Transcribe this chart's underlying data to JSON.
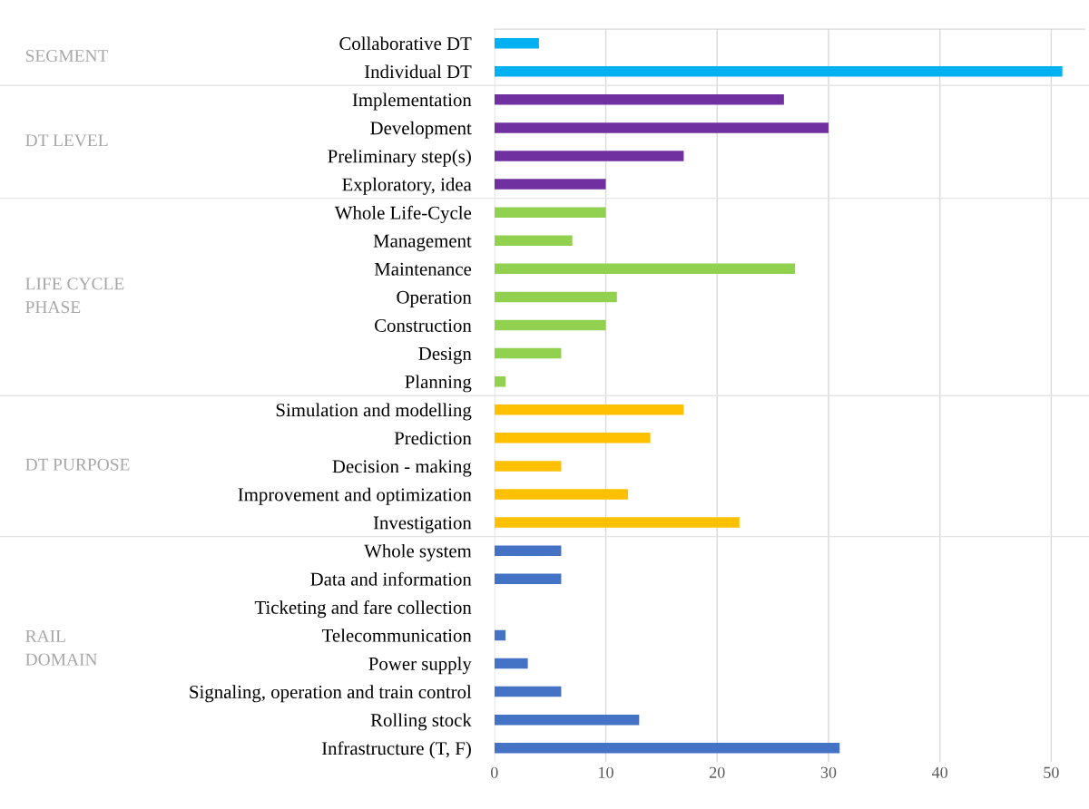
{
  "chart_data": {
    "type": "bar",
    "orientation": "horizontal",
    "categories": [
      "Collaborative DT",
      "Individual DT",
      "Implementation",
      "Development",
      "Preliminary step(s)",
      "Exploratory, idea",
      "Whole Life-Cycle",
      "Management",
      "Maintenance",
      "Operation",
      "Construction",
      "Design",
      "Planning",
      "Simulation and modelling",
      "Prediction",
      "Decision - making",
      "Improvement and optimization",
      "Investigation",
      "Whole system",
      "Data and information",
      "Ticketing and fare collection",
      "Telecommunication",
      "Power supply",
      "Signaling, operation and train control",
      "Rolling stock",
      "Infrastructure (T, F)"
    ],
    "series": [
      {
        "color": "#00b0f0",
        "values": [
          4,
          51,
          null,
          null,
          null,
          null,
          null,
          null,
          null,
          null,
          null,
          null,
          null,
          null,
          null,
          null,
          null,
          null,
          null,
          null,
          null,
          null,
          null,
          null,
          null,
          null
        ]
      },
      {
        "color": "#7030a0",
        "values": [
          null,
          null,
          26,
          30,
          17,
          10,
          null,
          null,
          null,
          null,
          null,
          null,
          null,
          null,
          null,
          null,
          null,
          null,
          null,
          null,
          null,
          null,
          null,
          null,
          null,
          null
        ]
      },
      {
        "color": "#92d050",
        "values": [
          null,
          null,
          null,
          null,
          null,
          null,
          10,
          7,
          27,
          11,
          10,
          6,
          1,
          null,
          null,
          null,
          null,
          null,
          null,
          null,
          null,
          null,
          null,
          null,
          null,
          null
        ]
      },
      {
        "color": "#ffc000",
        "values": [
          null,
          null,
          null,
          null,
          null,
          null,
          null,
          null,
          null,
          null,
          null,
          null,
          null,
          17,
          14,
          6,
          12,
          22,
          null,
          null,
          null,
          null,
          null,
          null,
          null,
          null
        ]
      },
      {
        "color": "#4472c4",
        "values": [
          null,
          null,
          null,
          null,
          null,
          null,
          null,
          null,
          null,
          null,
          null,
          null,
          null,
          null,
          null,
          null,
          null,
          null,
          6,
          6,
          0,
          1,
          3,
          6,
          13,
          31
        ]
      }
    ],
    "annotations": [
      "SEGMENT",
      "DT LEVEL",
      "LIFE CYCLE\nPHASE",
      "DT PURPOSE",
      "RAIL\nDOMAIN"
    ],
    "xlim": [
      0,
      53
    ],
    "xticks": [
      0,
      10,
      20,
      30,
      40,
      50
    ],
    "grid": "x",
    "legend": false
  }
}
